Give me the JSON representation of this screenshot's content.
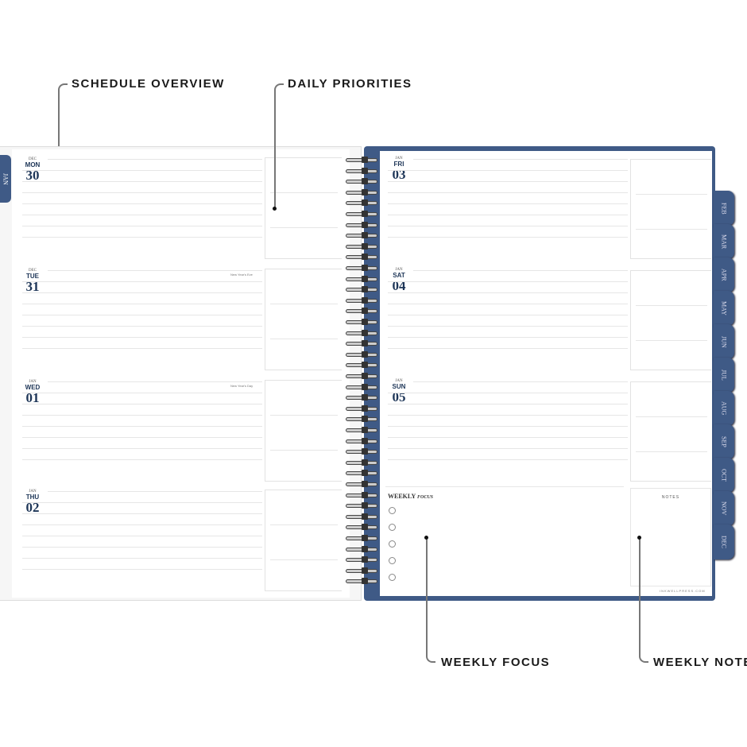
{
  "callouts": {
    "schedule": "SCHEDULE OVERVIEW",
    "priorities": "DAILY PRIORITIES",
    "focus": "WEEKLY FOCUS",
    "notes": "WEEKLY NOTES"
  },
  "left_tab": "JAN",
  "left_days": [
    {
      "month": "DEC",
      "weekday": "MON",
      "date": "30",
      "holiday": ""
    },
    {
      "month": "DEC",
      "weekday": "TUE",
      "date": "31",
      "holiday": "New Year's Eve"
    },
    {
      "month": "JAN",
      "weekday": "WED",
      "date": "01",
      "holiday": "New Year's Day"
    },
    {
      "month": "JAN",
      "weekday": "THU",
      "date": "02",
      "holiday": ""
    }
  ],
  "right_days": [
    {
      "month": "JAN",
      "weekday": "FRI",
      "date": "03"
    },
    {
      "month": "JAN",
      "weekday": "SAT",
      "date": "04"
    },
    {
      "month": "JAN",
      "weekday": "SUN",
      "date": "05"
    }
  ],
  "weekly_focus": {
    "title_main": "WEEKLY",
    "title_accent": "FOCUS",
    "items": 5
  },
  "notes_label": "NOTES",
  "footer": "INKWELLPRESS.COM",
  "month_tabs": [
    "FEB",
    "MAR",
    "APR",
    "MAY",
    "JUN",
    "JUL",
    "AUG",
    "SEP",
    "OCT",
    "NOV",
    "DEC"
  ],
  "colors": {
    "navy": "#1d3557",
    "cover": "#3f5a86"
  }
}
